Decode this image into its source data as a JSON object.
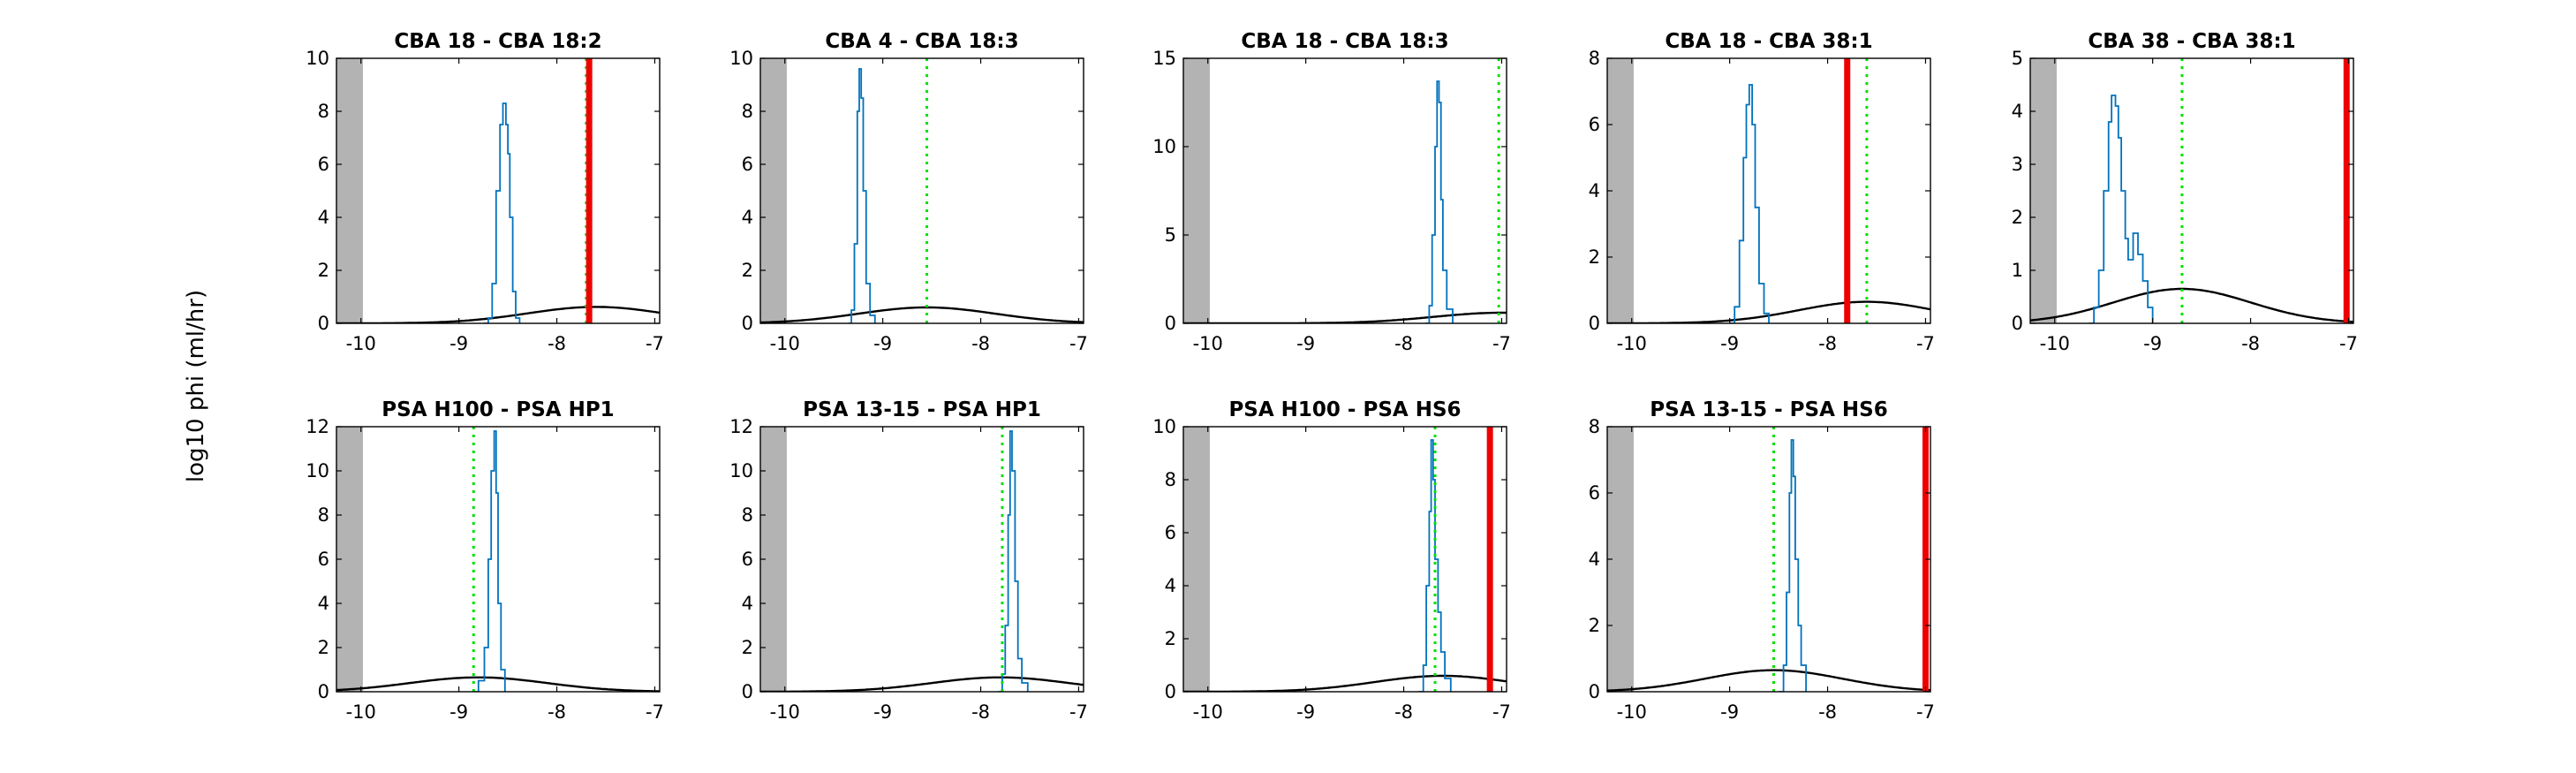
{
  "figure": {
    "ylabel": "log10 phi (ml/hr)"
  },
  "colors": {
    "histogram": "#0072BD",
    "gaussian": "#000000",
    "dotted": "#00E000",
    "red": "#EE0000",
    "shade": "#B3B3B3"
  },
  "chart_data": [
    {
      "type": "line",
      "title": "CBA 18 - CBA 18:2",
      "xlim": [
        -10.25,
        -6.95
      ],
      "ylim": [
        0,
        10
      ],
      "xticks": [
        "-10",
        "-9",
        "-8",
        "-7"
      ],
      "yticks": [
        "0",
        "2",
        "4",
        "6",
        "8",
        "10"
      ],
      "shade_xmax": -9.98,
      "dotted_x": -7.7,
      "red_x": -7.67,
      "series": [
        {
          "kind": "histogram",
          "points": [
            [
              -8.75,
              0
            ],
            [
              -8.7,
              0.2
            ],
            [
              -8.66,
              1.5
            ],
            [
              -8.62,
              5
            ],
            [
              -8.58,
              7.5
            ],
            [
              -8.55,
              8.3
            ],
            [
              -8.52,
              7.5
            ],
            [
              -8.5,
              6.4
            ],
            [
              -8.48,
              4
            ],
            [
              -8.45,
              1.2
            ],
            [
              -8.42,
              0.2
            ],
            [
              -8.38,
              0
            ]
          ]
        },
        {
          "kind": "gaussian",
          "mean": -7.6,
          "sd": 0.7,
          "peak": 0.62
        }
      ]
    },
    {
      "type": "line",
      "title": "CBA 4 - CBA 18:3",
      "xlim": [
        -10.25,
        -6.95
      ],
      "ylim": [
        0,
        10
      ],
      "xticks": [
        "-10",
        "-9",
        "-8",
        "-7"
      ],
      "yticks": [
        "0",
        "2",
        "4",
        "6",
        "8",
        "10"
      ],
      "shade_xmax": -9.98,
      "dotted_x": -8.55,
      "series": [
        {
          "kind": "histogram",
          "points": [
            [
              -9.35,
              0
            ],
            [
              -9.32,
              0.5
            ],
            [
              -9.29,
              3
            ],
            [
              -9.26,
              8
            ],
            [
              -9.24,
              9.6
            ],
            [
              -9.22,
              8.5
            ],
            [
              -9.2,
              5
            ],
            [
              -9.17,
              1.5
            ],
            [
              -9.13,
              0.3
            ],
            [
              -9.08,
              0
            ]
          ]
        },
        {
          "kind": "gaussian",
          "mean": -8.55,
          "sd": 0.7,
          "peak": 0.6
        }
      ]
    },
    {
      "type": "line",
      "title": "CBA 18 - CBA 18:3",
      "xlim": [
        -10.25,
        -6.95
      ],
      "ylim": [
        0,
        15
      ],
      "xticks": [
        "-10",
        "-9",
        "-8",
        "-7"
      ],
      "yticks": [
        "0",
        "5",
        "10",
        "15"
      ],
      "shade_xmax": -9.98,
      "dotted_x": -7.03,
      "series": [
        {
          "kind": "histogram",
          "points": [
            [
              -7.78,
              0
            ],
            [
              -7.74,
              1
            ],
            [
              -7.71,
              5
            ],
            [
              -7.68,
              10
            ],
            [
              -7.66,
              13.7
            ],
            [
              -7.64,
              12.5
            ],
            [
              -7.62,
              7
            ],
            [
              -7.6,
              3
            ],
            [
              -7.56,
              0.8
            ],
            [
              -7.5,
              0
            ]
          ]
        },
        {
          "kind": "gaussian",
          "mean": -7.0,
          "sd": 0.7,
          "peak": 0.6
        }
      ]
    },
    {
      "type": "line",
      "title": "CBA 18 - CBA 38:1",
      "xlim": [
        -10.25,
        -6.95
      ],
      "ylim": [
        0,
        8
      ],
      "xticks": [
        "-10",
        "-9",
        "-8",
        "-7"
      ],
      "yticks": [
        "0",
        "2",
        "4",
        "6",
        "8"
      ],
      "shade_xmax": -9.98,
      "dotted_x": -7.6,
      "red_x": -7.8,
      "series": [
        {
          "kind": "histogram",
          "points": [
            [
              -9.0,
              0
            ],
            [
              -8.95,
              0.5
            ],
            [
              -8.9,
              2.5
            ],
            [
              -8.86,
              5
            ],
            [
              -8.83,
              6.6
            ],
            [
              -8.8,
              7.2
            ],
            [
              -8.77,
              6
            ],
            [
              -8.74,
              3.5
            ],
            [
              -8.7,
              1.2
            ],
            [
              -8.65,
              0.3
            ],
            [
              -8.6,
              0
            ]
          ]
        },
        {
          "kind": "gaussian",
          "mean": -7.6,
          "sd": 0.7,
          "peak": 0.65
        }
      ]
    },
    {
      "type": "line",
      "title": "CBA 38 - CBA 38:1",
      "xlim": [
        -10.25,
        -6.95
      ],
      "ylim": [
        0,
        5
      ],
      "xticks": [
        "-10",
        "-9",
        "-8",
        "-7"
      ],
      "yticks": [
        "0",
        "1",
        "2",
        "3",
        "4",
        "5"
      ],
      "shade_xmax": -9.98,
      "dotted_x": -8.7,
      "red_x": -7.02,
      "series": [
        {
          "kind": "histogram",
          "points": [
            [
              -9.65,
              0
            ],
            [
              -9.6,
              0.3
            ],
            [
              -9.55,
              1
            ],
            [
              -9.5,
              2.5
            ],
            [
              -9.45,
              3.8
            ],
            [
              -9.42,
              4.3
            ],
            [
              -9.38,
              4.1
            ],
            [
              -9.35,
              3.5
            ],
            [
              -9.32,
              2.5
            ],
            [
              -9.28,
              1.6
            ],
            [
              -9.25,
              1.2
            ],
            [
              -9.2,
              1.7
            ],
            [
              -9.15,
              1.3
            ],
            [
              -9.1,
              0.8
            ],
            [
              -9.05,
              0.3
            ],
            [
              -9.0,
              0
            ]
          ]
        },
        {
          "kind": "gaussian",
          "mean": -8.7,
          "sd": 0.7,
          "peak": 0.65
        }
      ]
    },
    {
      "type": "line",
      "title": "PSA H100 - PSA HP1",
      "xlim": [
        -10.25,
        -6.95
      ],
      "ylim": [
        0,
        12
      ],
      "xticks": [
        "-10",
        "-9",
        "-8",
        "-7"
      ],
      "yticks": [
        "0",
        "2",
        "4",
        "6",
        "8",
        "10",
        "12"
      ],
      "shade_xmax": -9.98,
      "dotted_x": -8.85,
      "series": [
        {
          "kind": "histogram",
          "points": [
            [
              -8.85,
              0
            ],
            [
              -8.8,
              0.5
            ],
            [
              -8.74,
              2
            ],
            [
              -8.7,
              6
            ],
            [
              -8.67,
              10
            ],
            [
              -8.64,
              11.8
            ],
            [
              -8.62,
              9
            ],
            [
              -8.6,
              4
            ],
            [
              -8.57,
              1
            ],
            [
              -8.53,
              0
            ]
          ]
        },
        {
          "kind": "gaussian",
          "mean": -8.8,
          "sd": 0.7,
          "peak": 0.65
        }
      ]
    },
    {
      "type": "line",
      "title": "PSA 13-15 - PSA HP1",
      "xlim": [
        -10.25,
        -6.95
      ],
      "ylim": [
        0,
        12
      ],
      "xticks": [
        "-10",
        "-9",
        "-8",
        "-7"
      ],
      "yticks": [
        "0",
        "2",
        "4",
        "6",
        "8",
        "10",
        "12"
      ],
      "shade_xmax": -9.98,
      "dotted_x": -7.78,
      "series": [
        {
          "kind": "histogram",
          "points": [
            [
              -7.82,
              0
            ],
            [
              -7.78,
              0.8
            ],
            [
              -7.75,
              3
            ],
            [
              -7.72,
              8
            ],
            [
              -7.7,
              11.8
            ],
            [
              -7.68,
              10
            ],
            [
              -7.65,
              5
            ],
            [
              -7.62,
              1.5
            ],
            [
              -7.58,
              0.4
            ],
            [
              -7.52,
              0
            ]
          ]
        },
        {
          "kind": "gaussian",
          "mean": -7.8,
          "sd": 0.7,
          "peak": 0.65
        }
      ]
    },
    {
      "type": "line",
      "title": "PSA H100 - PSA HS6",
      "xlim": [
        -10.25,
        -6.95
      ],
      "ylim": [
        0,
        10
      ],
      "xticks": [
        "-10",
        "-9",
        "-8",
        "-7"
      ],
      "yticks": [
        "0",
        "2",
        "4",
        "6",
        "8",
        "10"
      ],
      "shade_xmax": -9.98,
      "dotted_x": -7.68,
      "red_x": -7.12,
      "series": [
        {
          "kind": "histogram",
          "points": [
            [
              -7.85,
              0
            ],
            [
              -7.8,
              1
            ],
            [
              -7.77,
              4
            ],
            [
              -7.74,
              6.8
            ],
            [
              -7.72,
              9.5
            ],
            [
              -7.7,
              8
            ],
            [
              -7.68,
              5
            ],
            [
              -7.65,
              3
            ],
            [
              -7.62,
              1.5
            ],
            [
              -7.58,
              0.5
            ],
            [
              -7.52,
              0
            ]
          ]
        },
        {
          "kind": "gaussian",
          "mean": -7.6,
          "sd": 0.7,
          "peak": 0.6
        }
      ]
    },
    {
      "type": "line",
      "title": "PSA 13-15 - PSA HS6",
      "xlim": [
        -10.25,
        -6.95
      ],
      "ylim": [
        0,
        8
      ],
      "xticks": [
        "-10",
        "-9",
        "-8",
        "-7"
      ],
      "yticks": [
        "0",
        "2",
        "4",
        "6",
        "8"
      ],
      "shade_xmax": -9.98,
      "dotted_x": -8.55,
      "red_x": -7.0,
      "series": [
        {
          "kind": "histogram",
          "points": [
            [
              -8.5,
              0
            ],
            [
              -8.45,
              0.8
            ],
            [
              -8.42,
              3
            ],
            [
              -8.39,
              6
            ],
            [
              -8.37,
              7.6
            ],
            [
              -8.35,
              6.5
            ],
            [
              -8.33,
              4
            ],
            [
              -8.3,
              2
            ],
            [
              -8.27,
              0.8
            ],
            [
              -8.22,
              0
            ]
          ]
        },
        {
          "kind": "gaussian",
          "mean": -8.55,
          "sd": 0.7,
          "peak": 0.65
        }
      ]
    }
  ]
}
